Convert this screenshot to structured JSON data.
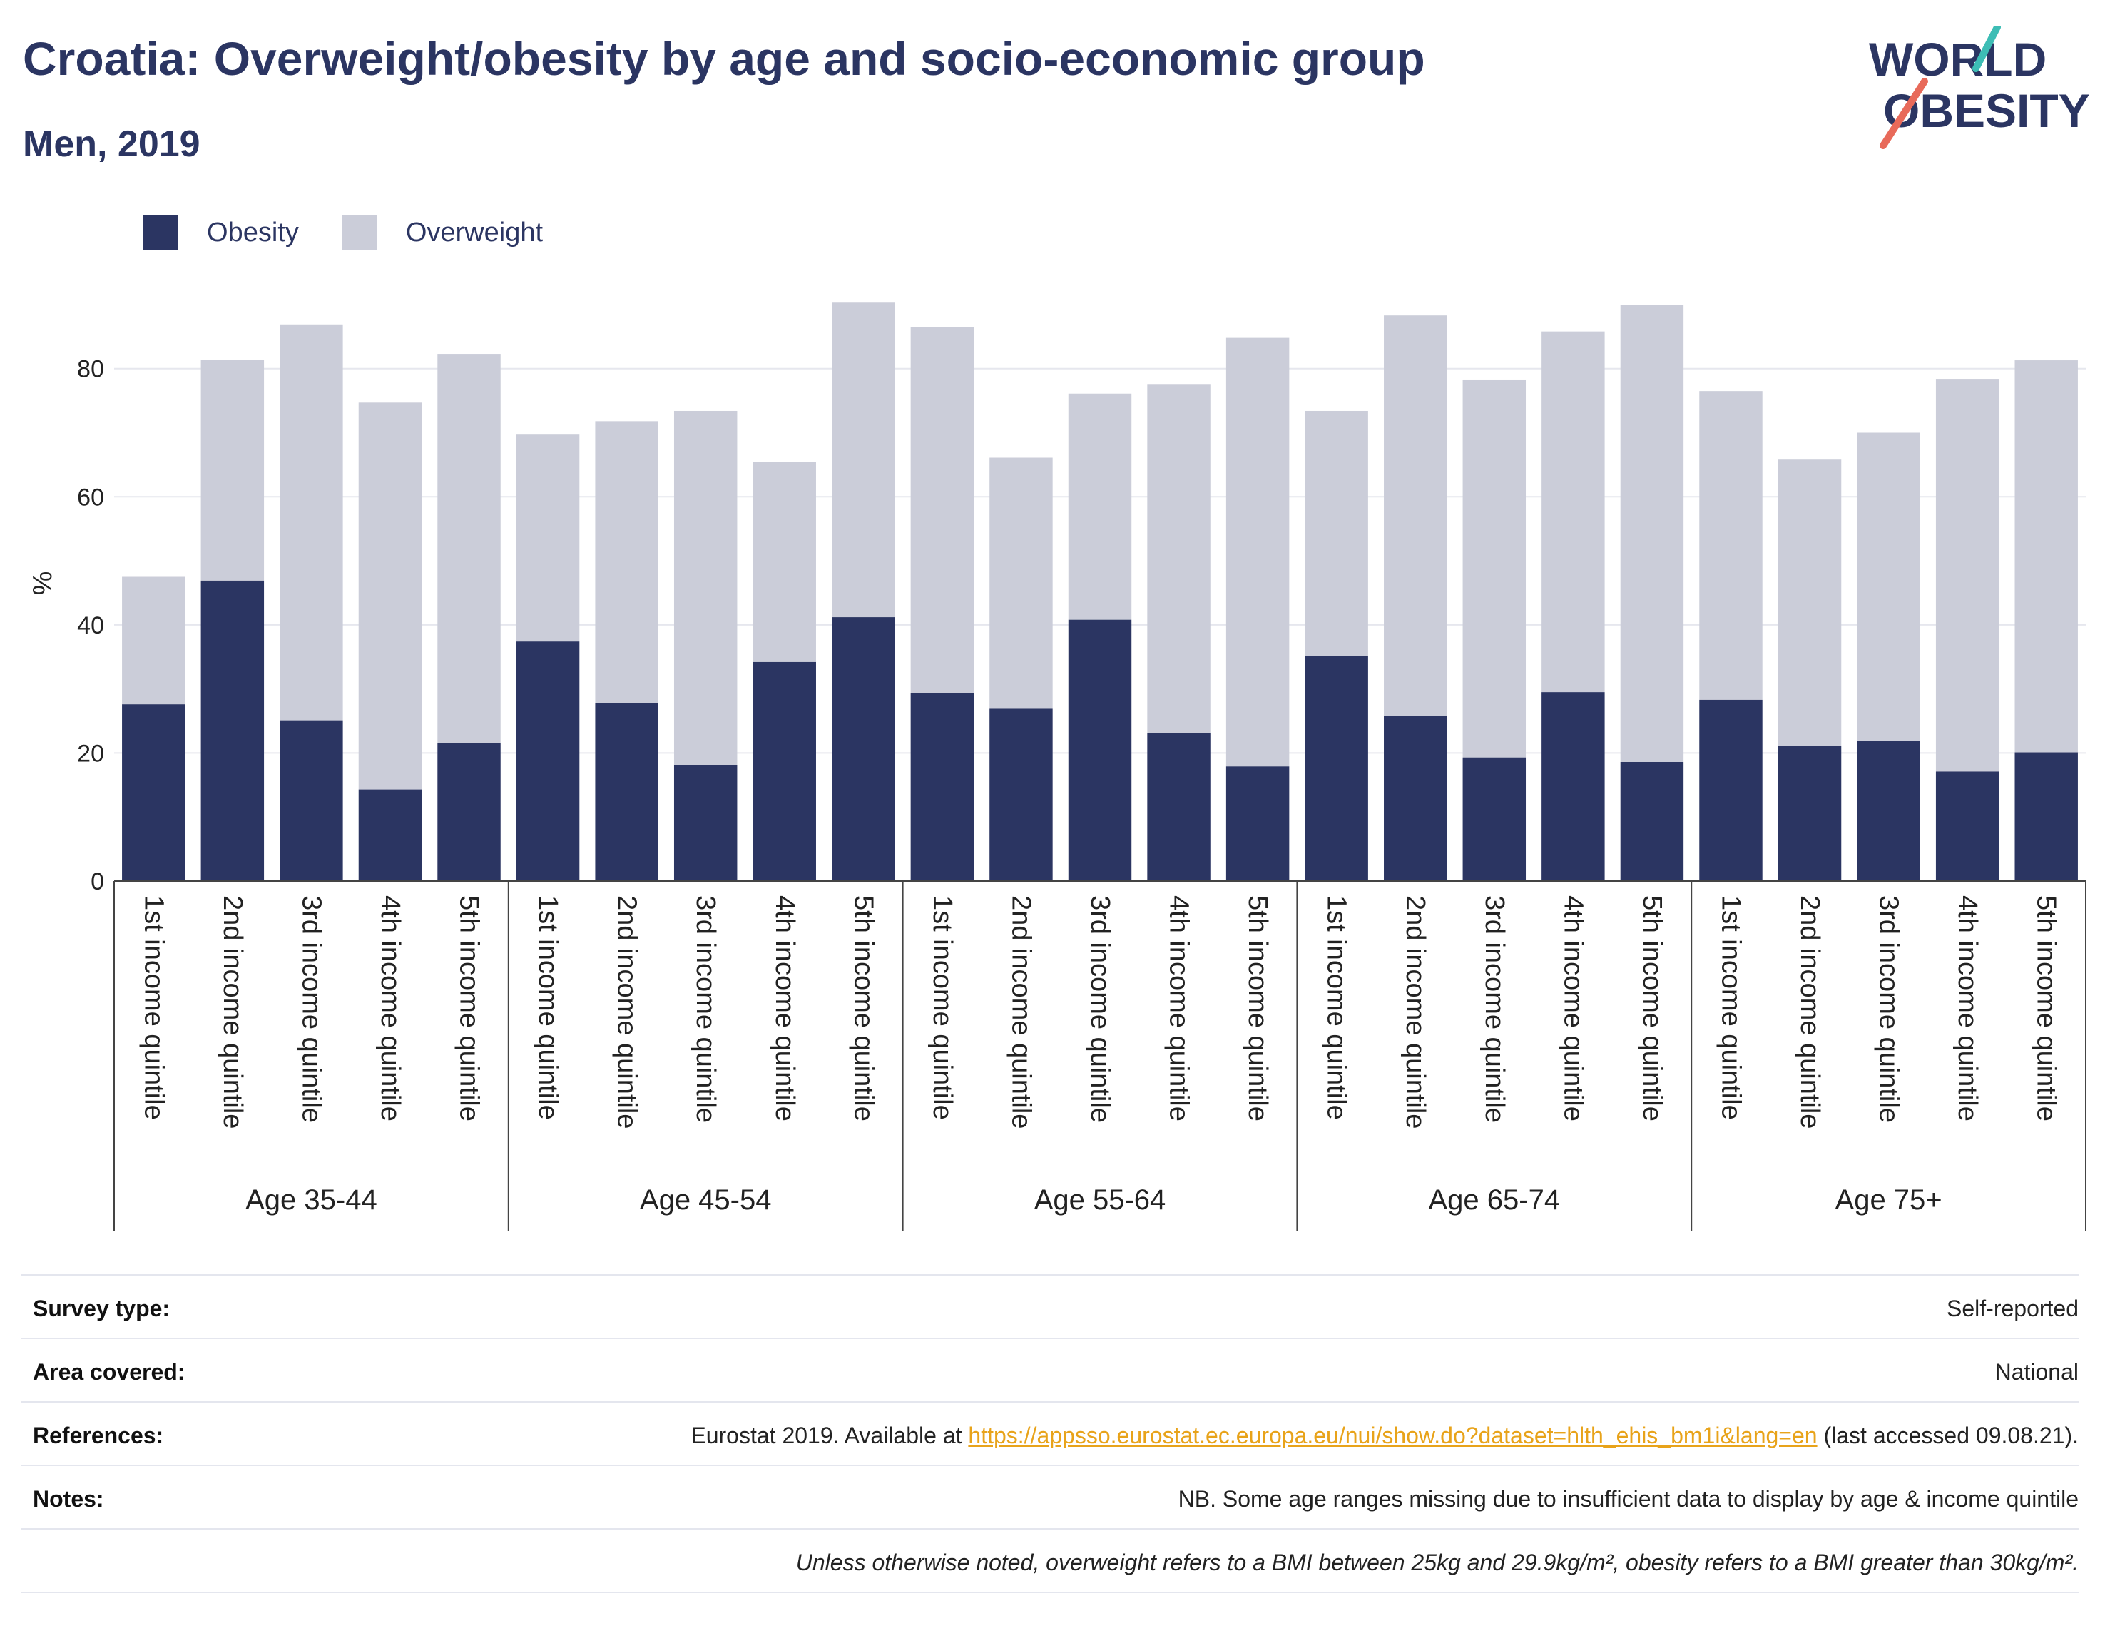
{
  "header": {
    "title": "Croatia: Overweight/obesity by age and socio-economic group",
    "subtitle": "Men, 2019",
    "logo_line1": "WORLD",
    "logo_line2": "OBESITY"
  },
  "legend": {
    "obesity": "Obesity",
    "overweight": "Overweight"
  },
  "colors": {
    "obesity": "#2b3562",
    "overweight": "#cbcdd9",
    "accent_teal": "#3dbdb5",
    "accent_coral": "#e86a5a"
  },
  "chart_data": {
    "type": "bar",
    "stacked": true,
    "ylabel": "%",
    "ylim": [
      0,
      93
    ],
    "yticks": [
      0,
      20,
      40,
      60,
      80
    ],
    "grid": true,
    "legend_position": "top-left",
    "groups": [
      "Age 35-44",
      "Age 45-54",
      "Age 55-64",
      "Age 65-74",
      "Age 75+"
    ],
    "categories": [
      "1st income quintile",
      "2nd income quintile",
      "3rd income quintile",
      "4th income quintile",
      "5th income quintile"
    ],
    "series": [
      {
        "name": "Obesity",
        "values": [
          [
            27.6,
            46.9,
            25.1,
            14.3,
            21.5
          ],
          [
            37.4,
            27.8,
            18.1,
            34.2,
            41.2
          ],
          [
            29.4,
            26.9,
            40.8,
            23.1,
            17.9
          ],
          [
            35.1,
            25.8,
            19.3,
            29.5,
            18.6
          ],
          [
            28.3,
            21.1,
            21.9,
            17.1,
            20.1
          ]
        ]
      },
      {
        "name": "Overweight",
        "values": [
          [
            19.9,
            34.5,
            61.8,
            60.4,
            60.8
          ],
          [
            32.3,
            44.0,
            55.3,
            31.2,
            49.1
          ],
          [
            57.1,
            39.2,
            35.3,
            54.5,
            66.9
          ],
          [
            38.3,
            62.5,
            59.0,
            56.3,
            71.3
          ],
          [
            48.2,
            44.7,
            48.1,
            61.3,
            61.2
          ]
        ]
      }
    ]
  },
  "meta": {
    "survey_type_label": "Survey type:",
    "survey_type_value": "Self-reported",
    "area_label": "Area covered:",
    "area_value": "National",
    "references_label": "References:",
    "references_prefix": "Eurostat 2019. Available at ",
    "references_link": "https://appsso.eurostat.ec.europa.eu/nui/show.do?dataset=hlth_ehis_bm1i&lang=en",
    "references_suffix": " (last accessed 09.08.21).",
    "notes_label": "Notes:",
    "notes_value": "NB. Some age ranges missing due to insufficient data to display by age & income quintile",
    "definition_note": "Unless otherwise noted, overweight refers to a BMI between 25kg and 29.9kg/m², obesity refers to a BMI greater than 30kg/m²."
  }
}
